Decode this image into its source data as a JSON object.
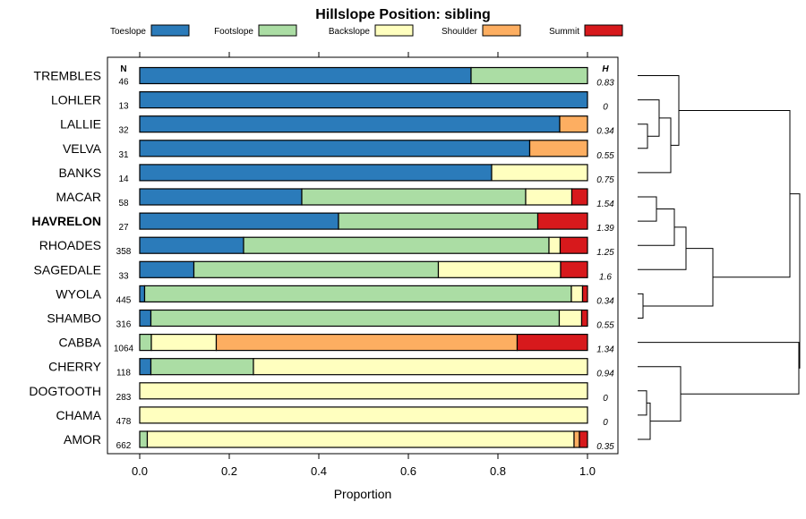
{
  "chart_data": {
    "type": "bar",
    "orientation": "horizontal",
    "stacked": true,
    "title": "Hillslope Position: sibling",
    "xlabel": "Proportion",
    "xlim": [
      0,
      1
    ],
    "x_ticks": [
      "0.0",
      "0.2",
      "0.4",
      "0.6",
      "0.8",
      "1.0"
    ],
    "n_header": "N",
    "h_header": "H",
    "highlight": "HAVRELON",
    "legend": [
      {
        "name": "Toeslope",
        "color": "#2b7bba"
      },
      {
        "name": "Footslope",
        "color": "#abdda4"
      },
      {
        "name": "Backslope",
        "color": "#ffffbf"
      },
      {
        "name": "Shoulder",
        "color": "#fdae61"
      },
      {
        "name": "Summit",
        "color": "#d7191c"
      }
    ],
    "rows": [
      {
        "name": "TREMBLES",
        "n": "46",
        "h": "0.83",
        "values": [
          0.74,
          0.26,
          0,
          0,
          0
        ]
      },
      {
        "name": "LOHLER",
        "n": "13",
        "h": "0",
        "values": [
          1.0,
          0,
          0,
          0,
          0
        ]
      },
      {
        "name": "LALLIE",
        "n": "32",
        "h": "0.34",
        "values": [
          0.938,
          0,
          0,
          0.062,
          0
        ]
      },
      {
        "name": "VELVA",
        "n": "31",
        "h": "0.55",
        "values": [
          0.871,
          0,
          0,
          0.129,
          0
        ]
      },
      {
        "name": "BANKS",
        "n": "14",
        "h": "0.75",
        "values": [
          0.786,
          0,
          0.214,
          0,
          0
        ]
      },
      {
        "name": "MACAR",
        "n": "58",
        "h": "1.54",
        "values": [
          0.362,
          0.5,
          0.103,
          0,
          0.035
        ]
      },
      {
        "name": "HAVRELON",
        "n": "27",
        "h": "1.39",
        "values": [
          0.444,
          0.445,
          0,
          0,
          0.111
        ]
      },
      {
        "name": "RHOADES",
        "n": "358",
        "h": "1.25",
        "values": [
          0.232,
          0.682,
          0.025,
          0,
          0.061
        ]
      },
      {
        "name": "SAGEDALE",
        "n": "33",
        "h": "1.6",
        "values": [
          0.121,
          0.546,
          0.273,
          0,
          0.06
        ]
      },
      {
        "name": "WYOLA",
        "n": "445",
        "h": "0.34",
        "values": [
          0.011,
          0.953,
          0.025,
          0,
          0.011
        ]
      },
      {
        "name": "SHAMBO",
        "n": "316",
        "h": "0.55",
        "values": [
          0.025,
          0.912,
          0.05,
          0,
          0.013
        ]
      },
      {
        "name": "CABBA",
        "n": "1064",
        "h": "1.34",
        "values": [
          0,
          0.026,
          0.145,
          0.672,
          0.157
        ]
      },
      {
        "name": "CHERRY",
        "n": "118",
        "h": "0.94",
        "values": [
          0.025,
          0.229,
          0.746,
          0,
          0
        ]
      },
      {
        "name": "DOGTOOTH",
        "n": "283",
        "h": "0",
        "values": [
          0,
          0,
          1.0,
          0,
          0
        ]
      },
      {
        "name": "CHAMA",
        "n": "478",
        "h": "0",
        "values": [
          0,
          0,
          1.0,
          0,
          0
        ]
      },
      {
        "name": "AMOR",
        "n": "662",
        "h": "0.35",
        "values": [
          0,
          0.017,
          0.953,
          0.012,
          0.018
        ]
      }
    ]
  }
}
